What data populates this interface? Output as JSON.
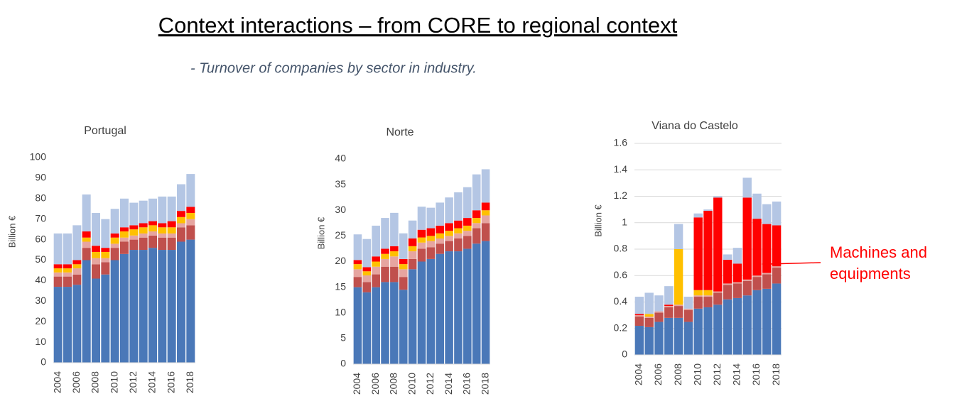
{
  "title": "Context interactions – from CORE to regional context",
  "subtitle": "- Turnover of companies by sector in industry.",
  "chart_data": [
    {
      "type": "bar",
      "stacked": true,
      "title": "Portugal",
      "y_label": "Billion €",
      "categories": [
        "2004",
        null,
        "2006",
        null,
        "2008",
        null,
        "2010",
        null,
        "2012",
        null,
        "2014",
        null,
        "2016",
        null,
        "2018"
      ],
      "ylim": [
        0,
        100
      ],
      "yticks": [
        0,
        10,
        20,
        30,
        40,
        50,
        60,
        70,
        80,
        90,
        100
      ],
      "grid": false,
      "series": [
        {
          "color": "#4a78b8",
          "values": [
            37,
            37,
            38,
            50,
            41,
            43,
            50,
            53,
            55,
            55,
            56,
            55,
            55,
            59,
            60
          ]
        },
        {
          "color": "#c0504d",
          "values": [
            5,
            5,
            5,
            6,
            7,
            6,
            6,
            6,
            5,
            6,
            6,
            6,
            6,
            7,
            7
          ]
        },
        {
          "color": "#e6a5a0",
          "values": [
            2,
            2,
            3,
            3,
            3,
            2,
            2,
            2,
            2,
            2,
            2,
            2,
            2,
            2,
            3
          ]
        },
        {
          "color": "#ffc000",
          "values": [
            2,
            2,
            2,
            2,
            3,
            3,
            3,
            3,
            3,
            3,
            3,
            3,
            3,
            3,
            3
          ]
        },
        {
          "color": "#ff0000",
          "values": [
            2,
            2,
            2,
            3,
            3,
            2,
            2,
            2,
            2,
            2,
            2,
            2,
            3,
            3,
            3
          ]
        },
        {
          "color": "#b4c6e4",
          "values": [
            15,
            15,
            17,
            18,
            16,
            14,
            12,
            14,
            11,
            11,
            11,
            13,
            12,
            13,
            16
          ]
        }
      ]
    },
    {
      "type": "bar",
      "stacked": true,
      "title": "Norte",
      "y_label": "Billion €",
      "categories": [
        "2004",
        null,
        "2006",
        null,
        "2008",
        null,
        "2010",
        null,
        "2012",
        null,
        "2014",
        null,
        "2016",
        null,
        "2018"
      ],
      "ylim": [
        0,
        40
      ],
      "yticks": [
        0,
        5,
        10,
        15,
        20,
        25,
        30,
        35,
        40
      ],
      "grid": false,
      "series": [
        {
          "color": "#4a78b8",
          "values": [
            15,
            14,
            15,
            16,
            16,
            14.5,
            18.5,
            20,
            20.5,
            21.5,
            22,
            22,
            22.5,
            23.5,
            24
          ]
        },
        {
          "color": "#c0504d",
          "values": [
            2,
            2,
            2.5,
            3,
            3,
            2.5,
            2,
            2.5,
            2.3,
            2,
            2,
            2.5,
            2.5,
            3,
            3.5
          ]
        },
        {
          "color": "#e6a5a0",
          "values": [
            1.5,
            1.3,
            1.5,
            1.5,
            2,
            1.5,
            1.5,
            1.2,
            1.2,
            1,
            1,
            1,
            1,
            1,
            1.5
          ]
        },
        {
          "color": "#ffc000",
          "values": [
            1,
            0.8,
            1,
            1,
            1,
            1,
            1,
            1,
            1,
            1,
            1,
            1,
            1,
            1,
            1
          ]
        },
        {
          "color": "#ff0000",
          "values": [
            0.8,
            0.8,
            1,
            1,
            1,
            1,
            1.5,
            1.5,
            1.5,
            1.5,
            1.5,
            1.5,
            1.5,
            1.5,
            1.5
          ]
        },
        {
          "color": "#b4c6e4",
          "values": [
            5,
            5.5,
            6,
            6,
            6.5,
            5,
            3.5,
            4.5,
            4,
            4.5,
            5,
            5.5,
            6,
            7,
            6.5
          ]
        }
      ]
    },
    {
      "type": "bar",
      "stacked": true,
      "title": "Viana do Castelo",
      "y_label": "Billion €",
      "categories": [
        "2004",
        null,
        "2006",
        null,
        "2008",
        null,
        "2010",
        null,
        "2012",
        null,
        "2014",
        null,
        "2016",
        null,
        "2018"
      ],
      "ylim": [
        0,
        1.6
      ],
      "yticks": [
        0,
        0.2,
        0.4,
        0.6,
        0.8,
        1,
        1.2,
        1.4,
        1.6
      ],
      "grid": true,
      "annotation": "Machines and equipments",
      "series": [
        {
          "color": "#4a78b8",
          "values": [
            0.22,
            0.21,
            0.25,
            0.28,
            0.28,
            0.25,
            0.35,
            0.36,
            0.38,
            0.42,
            0.43,
            0.45,
            0.49,
            0.5,
            0.54
          ]
        },
        {
          "color": "#c0504d",
          "values": [
            0.07,
            0.07,
            0.07,
            0.08,
            0.09,
            0.09,
            0.09,
            0.08,
            0.09,
            0.11,
            0.11,
            0.11,
            0.1,
            0.11,
            0.12
          ]
        },
        {
          "color": "#e6a5a0",
          "values": [
            0.01,
            0.01,
            0.01,
            0.01,
            0.01,
            0.01,
            0.01,
            0.01,
            0.01,
            0.01,
            0.01,
            0.01,
            0.01,
            0.01,
            0.01
          ]
        },
        {
          "color": "#ffc000",
          "values": [
            0,
            0.02,
            0,
            0,
            0.42,
            0,
            0.04,
            0.04,
            0,
            0,
            0,
            0,
            0,
            0,
            0
          ]
        },
        {
          "color": "#ff0000",
          "values": [
            0.01,
            0,
            0,
            0.01,
            0,
            0,
            0.55,
            0.6,
            0.71,
            0.18,
            0.14,
            0.62,
            0.43,
            0.37,
            0.31
          ]
        },
        {
          "color": "#b4c6e4",
          "values": [
            0.13,
            0.16,
            0.12,
            0.14,
            0.19,
            0.09,
            0.03,
            0.01,
            0.01,
            0.04,
            0.12,
            0.15,
            0.19,
            0.15,
            0.18
          ]
        }
      ]
    }
  ]
}
